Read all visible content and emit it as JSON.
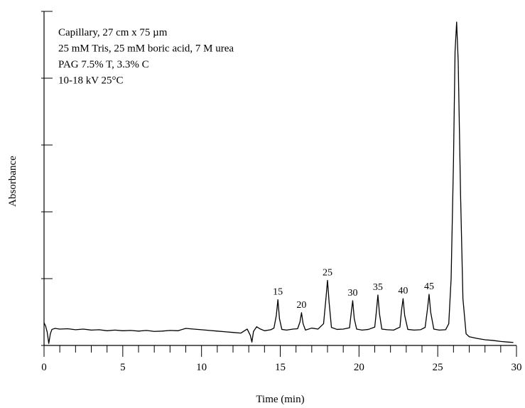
{
  "chart_data": {
    "type": "line",
    "title": "",
    "xlabel": "Time (min)",
    "ylabel": "Absorbance",
    "xlim": [
      0,
      30
    ],
    "ylim": [
      0,
      100
    ],
    "x_ticks": [
      0,
      5,
      10,
      15,
      20,
      25,
      30
    ],
    "x_minor_step": 1,
    "y_ticks": [
      0,
      20,
      40,
      60,
      80,
      100
    ],
    "y_tick_labels_shown": false,
    "grid": false,
    "annotation_lines": [
      "Capillary,  27 cm  x  75 µm",
      "25 mM Tris, 25 mM boric acid, 7 M urea",
      "PAG 7.5% T, 3.3% C",
      "10-18 kV   25°C"
    ],
    "baseline": 4.5,
    "peaks": [
      {
        "label": "15",
        "x": 14.85,
        "y": 13.7
      },
      {
        "label": "20",
        "x": 16.35,
        "y": 9.8
      },
      {
        "label": "25",
        "x": 18.0,
        "y": 19.5
      },
      {
        "label": "30",
        "x": 19.6,
        "y": 13.4
      },
      {
        "label": "35",
        "x": 21.2,
        "y": 15.1
      },
      {
        "label": "40",
        "x": 22.8,
        "y": 14.0
      },
      {
        "label": "45",
        "x": 24.45,
        "y": 15.3
      },
      {
        "label": "",
        "x": 26.2,
        "y": 96.8
      }
    ],
    "series": [
      {
        "x": [
          0,
          0.1,
          0.2,
          0.3,
          0.4,
          0.5,
          0.7,
          1.0,
          1.5,
          2.0,
          2.5,
          3.0,
          3.5,
          4.0,
          4.5,
          5.0,
          5.5,
          6.0,
          6.5,
          7.0,
          7.5,
          8.0,
          8.5,
          9.0,
          9.5,
          10.0,
          10.5,
          11.0,
          11.5,
          12.0,
          12.5,
          12.9,
          13.1,
          13.2,
          13.3,
          13.5,
          13.7,
          14.0,
          14.4,
          14.6,
          14.75,
          14.85,
          14.95,
          15.1,
          15.4,
          15.8,
          16.1,
          16.25,
          16.35,
          16.45,
          16.6,
          17.0,
          17.4,
          17.75,
          17.9,
          18.0,
          18.1,
          18.25,
          18.6,
          19.0,
          19.4,
          19.5,
          19.6,
          19.7,
          19.85,
          20.2,
          20.6,
          21.0,
          21.1,
          21.2,
          21.3,
          21.45,
          21.8,
          22.2,
          22.6,
          22.7,
          22.8,
          22.9,
          23.1,
          23.5,
          23.9,
          24.2,
          24.35,
          24.45,
          24.55,
          24.75,
          25.1,
          25.5,
          25.7,
          25.85,
          26.0,
          26.1,
          26.2,
          26.3,
          26.45,
          26.6,
          26.8,
          27.0,
          27.5,
          28.0,
          28.5,
          29.0,
          29.5,
          29.8
        ],
        "y": [
          6.8,
          5.8,
          4.0,
          0.6,
          3.5,
          4.8,
          5.1,
          4.9,
          5.0,
          4.7,
          4.9,
          4.6,
          4.7,
          4.4,
          4.6,
          4.4,
          4.5,
          4.3,
          4.5,
          4.2,
          4.3,
          4.5,
          4.4,
          5.1,
          4.9,
          4.7,
          4.5,
          4.3,
          4.1,
          3.9,
          3.7,
          4.9,
          3.0,
          1.0,
          4.2,
          5.6,
          5.0,
          4.4,
          4.7,
          5.2,
          9.0,
          13.7,
          8.0,
          4.8,
          4.6,
          4.9,
          5.0,
          7.0,
          9.8,
          6.5,
          4.6,
          5.2,
          4.9,
          6.5,
          14.0,
          19.5,
          13.0,
          5.4,
          4.8,
          4.9,
          5.3,
          9.5,
          13.4,
          8.0,
          4.9,
          4.6,
          4.8,
          5.5,
          10.0,
          15.1,
          9.5,
          4.9,
          4.7,
          4.6,
          5.5,
          10.5,
          14.0,
          9.0,
          4.8,
          4.6,
          4.7,
          5.4,
          11.0,
          15.3,
          10.0,
          4.9,
          4.6,
          4.7,
          6.5,
          20.0,
          55.0,
          88.0,
          96.8,
          85.0,
          45.0,
          14.0,
          3.5,
          2.6,
          2.1,
          1.7,
          1.5,
          1.2,
          1.0,
          0.9
        ]
      }
    ]
  }
}
